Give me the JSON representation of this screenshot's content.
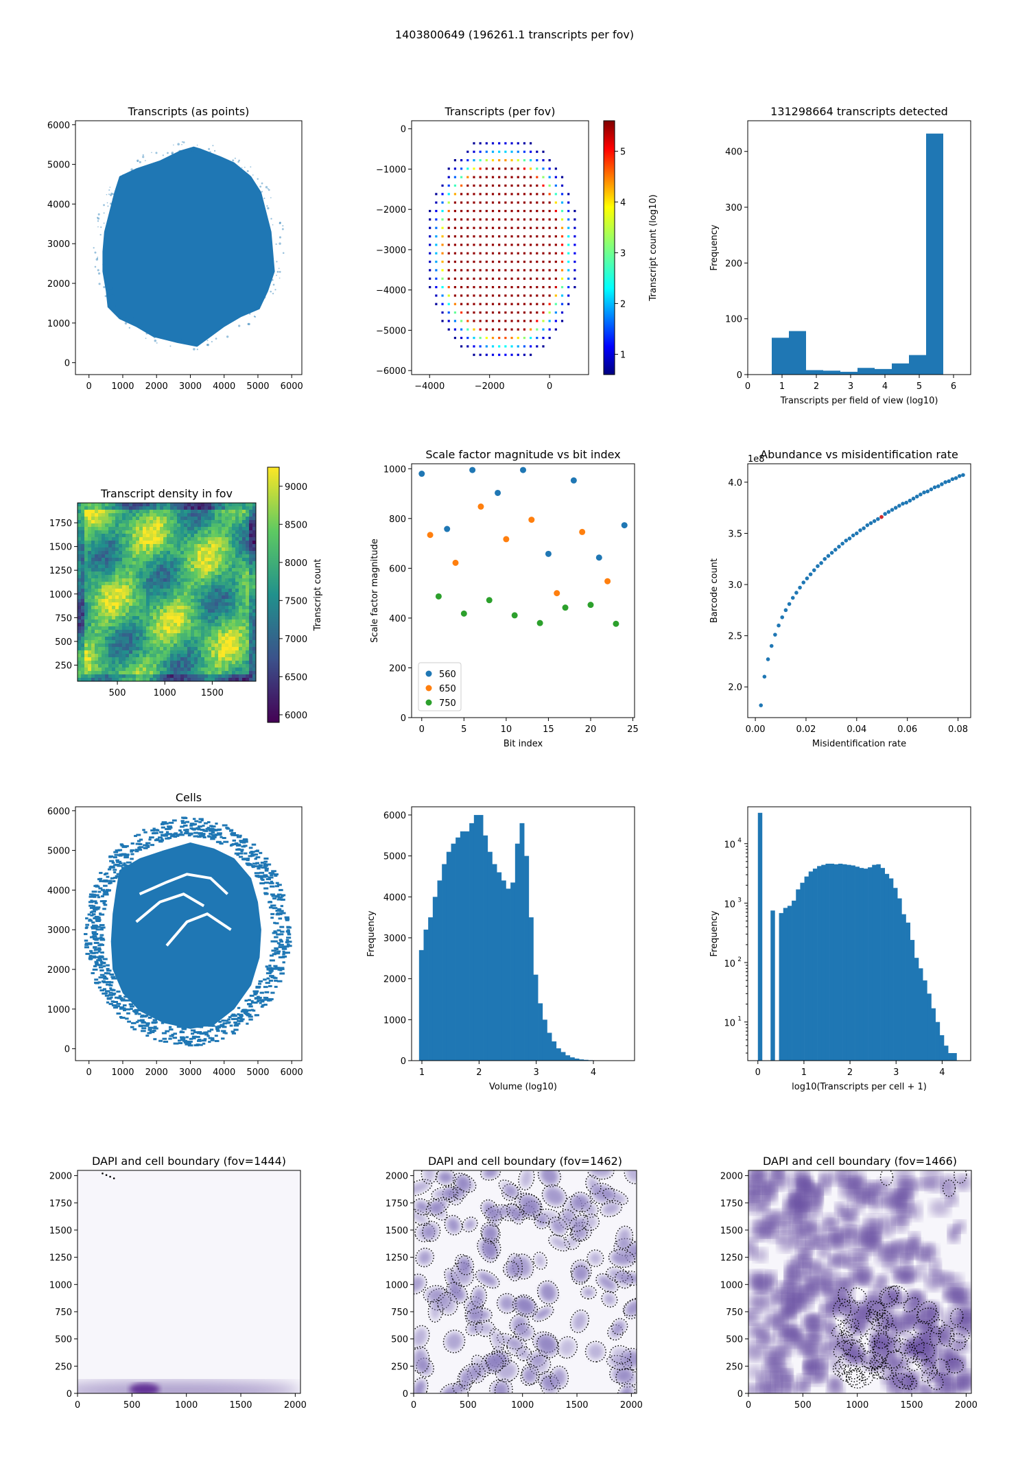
{
  "suptitle": "1403800649 (196261.1 transcripts per fov)",
  "colors": {
    "blue": "#1f77b4",
    "orange": "#ff7f0e",
    "green": "#2ca02c",
    "red": "#d62728",
    "dapi_dark": "#3f007d",
    "dapi_light": "#f7f6fb"
  },
  "chart_data": [
    {
      "id": "transcripts_points",
      "type": "scatter",
      "title": "Transcripts (as points)",
      "xlim": [
        -400,
        6300
      ],
      "ylim": [
        -300,
        6100
      ],
      "xticks": [
        0,
        1000,
        2000,
        3000,
        4000,
        5000,
        6000
      ],
      "yticks": [
        0,
        1000,
        2000,
        3000,
        4000,
        5000,
        6000
      ],
      "shape": "dense tissue outline",
      "outline": [
        [
          900,
          4700
        ],
        [
          1400,
          4900
        ],
        [
          2100,
          5100
        ],
        [
          2700,
          5350
        ],
        [
          3100,
          5450
        ],
        [
          3300,
          5400
        ],
        [
          3900,
          5200
        ],
        [
          4300,
          5050
        ],
        [
          4800,
          4700
        ],
        [
          5100,
          4300
        ],
        [
          5250,
          3800
        ],
        [
          5400,
          3300
        ],
        [
          5450,
          2800
        ],
        [
          5500,
          2300
        ],
        [
          5300,
          1800
        ],
        [
          5050,
          1350
        ],
        [
          4500,
          1150
        ],
        [
          4000,
          900
        ],
        [
          3600,
          650
        ],
        [
          3200,
          400
        ],
        [
          2600,
          500
        ],
        [
          1900,
          650
        ],
        [
          1400,
          900
        ],
        [
          900,
          1100
        ],
        [
          550,
          1400
        ],
        [
          500,
          1800
        ],
        [
          400,
          2300
        ],
        [
          400,
          2800
        ],
        [
          450,
          3300
        ],
        [
          600,
          3800
        ],
        [
          750,
          4300
        ]
      ]
    },
    {
      "id": "transcripts_per_fov",
      "type": "scatter",
      "title": "Transcripts (per fov)",
      "xlim": [
        -4600,
        1300
      ],
      "ylim": [
        -6100,
        200
      ],
      "xticks": [
        -4000,
        -2000,
        0
      ],
      "yticks": [
        0,
        -1000,
        -2000,
        -3000,
        -4000,
        -5000,
        -6000
      ],
      "colorbar": {
        "label": "Transcript count (log10)",
        "ticks": [
          1,
          2,
          3,
          4,
          5
        ],
        "range": [
          0.6,
          5.6
        ]
      },
      "grid": {
        "x_start": -4200,
        "x_step": 210,
        "x_count": 26,
        "y_start": -150,
        "y_step": -210,
        "y_count": 27,
        "center_x": -1550,
        "center_y": -3000,
        "radius_x": 2600,
        "radius_y": 2850
      }
    },
    {
      "id": "transcripts_hist",
      "type": "bar",
      "title": "131298664 transcripts detected",
      "xlabel": "Transcripts per field of view (log10)",
      "ylabel": "Frequency",
      "xlim": [
        0,
        6.5
      ],
      "ylim": [
        0,
        455
      ],
      "xticks": [
        0,
        1,
        2,
        3,
        4,
        5,
        6
      ],
      "yticks": [
        0,
        100,
        200,
        300,
        400
      ],
      "bin_edges": [
        0.7,
        1.2,
        1.7,
        2.2,
        2.7,
        3.2,
        3.7,
        4.2,
        4.7,
        5.2,
        5.7
      ],
      "values": [
        66,
        78,
        8,
        7,
        5,
        12,
        10,
        20,
        35,
        432
      ]
    },
    {
      "id": "density_fov",
      "type": "heatmap",
      "title": "Transcript density in fov",
      "xlim": [
        80,
        1960
      ],
      "ylim": [
        80,
        1960
      ],
      "xticks": [
        500,
        1000,
        1500
      ],
      "yticks": [
        250,
        500,
        750,
        1000,
        1250,
        1500,
        1750
      ],
      "colorbar": {
        "label": "Transcript count",
        "ticks": [
          6000,
          6500,
          7000,
          7500,
          8000,
          8500,
          9000
        ],
        "range": [
          5900,
          9250
        ]
      }
    },
    {
      "id": "scale_factor",
      "type": "scatter",
      "title": "Scale factor magnitude vs bit index",
      "xlabel": "Bit index",
      "ylabel": "Scale factor magnitude",
      "xlim": [
        -1.2,
        25.2
      ],
      "ylim": [
        0,
        1020
      ],
      "xticks": [
        0,
        5,
        10,
        15,
        20,
        25
      ],
      "yticks": [
        0,
        200,
        400,
        600,
        800,
        1000
      ],
      "legend": "lower left",
      "series": [
        {
          "name": "560",
          "x": [
            0,
            3,
            6,
            9,
            12,
            15,
            18,
            21,
            24
          ],
          "y": [
            980,
            758,
            995,
            903,
            995,
            658,
            953,
            643,
            773
          ]
        },
        {
          "name": "650",
          "x": [
            1,
            4,
            7,
            10,
            13,
            16,
            19,
            22
          ],
          "y": [
            734,
            622,
            848,
            717,
            795,
            500,
            746,
            548
          ]
        },
        {
          "name": "750",
          "x": [
            2,
            5,
            8,
            11,
            14,
            17,
            20,
            23
          ],
          "y": [
            487,
            418,
            472,
            411,
            380,
            442,
            453,
            377
          ]
        }
      ]
    },
    {
      "id": "abundance",
      "type": "scatter",
      "title": "Abundance vs misidentification rate",
      "xlabel": "Misidentification rate",
      "ylabel": "Barcode count",
      "offset_text": "1e8",
      "xlim": [
        -0.003,
        0.085
      ],
      "ylim": [
        1.7,
        4.18
      ],
      "xticks": [
        0.0,
        0.02,
        0.04,
        0.06,
        0.08
      ],
      "yticks": [
        2.0,
        2.5,
        3.0,
        3.5,
        4.0
      ],
      "x": [
        0.0022,
        0.0036,
        0.005,
        0.0064,
        0.0078,
        0.0092,
        0.0106,
        0.012,
        0.0134,
        0.0148,
        0.0162,
        0.0176,
        0.019,
        0.0204,
        0.0218,
        0.0232,
        0.0246,
        0.026,
        0.0274,
        0.0288,
        0.0302,
        0.0316,
        0.033,
        0.0344,
        0.0358,
        0.0372,
        0.0386,
        0.04,
        0.0414,
        0.0428,
        0.0442,
        0.0456,
        0.047,
        0.0484,
        0.0498,
        0.0512,
        0.0526,
        0.054,
        0.0554,
        0.0568,
        0.0582,
        0.0596,
        0.061,
        0.0624,
        0.0638,
        0.0652,
        0.0666,
        0.068,
        0.0694,
        0.0708,
        0.0722,
        0.0736,
        0.075,
        0.0764,
        0.0778,
        0.0792,
        0.0806,
        0.082
      ],
      "y": [
        1.82,
        2.1,
        2.27,
        2.4,
        2.51,
        2.6,
        2.68,
        2.75,
        2.81,
        2.87,
        2.92,
        2.97,
        3.02,
        3.06,
        3.1,
        3.14,
        3.18,
        3.21,
        3.25,
        3.28,
        3.31,
        3.34,
        3.37,
        3.4,
        3.43,
        3.45,
        3.48,
        3.5,
        3.53,
        3.55,
        3.58,
        3.6,
        3.62,
        3.64,
        3.66,
        3.69,
        3.71,
        3.73,
        3.75,
        3.77,
        3.79,
        3.8,
        3.82,
        3.84,
        3.86,
        3.88,
        3.9,
        3.91,
        3.93,
        3.95,
        3.96,
        3.98,
        4.0,
        4.01,
        4.03,
        4.04,
        4.06,
        4.07
      ],
      "highlight": {
        "x": 0.0498,
        "y": 3.66
      }
    },
    {
      "id": "cells",
      "type": "scatter",
      "title": "Cells",
      "xlim": [
        -400,
        6300
      ],
      "ylim": [
        -300,
        6100
      ],
      "xticks": [
        0,
        1000,
        2000,
        3000,
        4000,
        5000,
        6000
      ],
      "yticks": [
        0,
        1000,
        2000,
        3000,
        4000,
        5000,
        6000
      ],
      "shape": "dense tissue with surrounding ring of grid cells",
      "ring": {
        "center": [
          2900,
          2950
        ],
        "radius_x": 3000,
        "radius_y": 2850
      }
    },
    {
      "id": "volume_hist",
      "type": "bar",
      "title": "",
      "xlabel": "Volume (log10)",
      "ylabel": "Frequency",
      "xlim": [
        0.82,
        4.72
      ],
      "ylim": [
        0,
        6200
      ],
      "xticks": [
        1,
        2,
        3,
        4
      ],
      "yticks": [
        0,
        1000,
        2000,
        3000,
        4000,
        5000,
        6000
      ],
      "bin_start": 0.95,
      "bin_width": 0.08,
      "values": [
        2700,
        3200,
        3500,
        4000,
        4400,
        4800,
        5100,
        5300,
        5450,
        5600,
        5600,
        5800,
        6000,
        6000,
        5500,
        5100,
        4800,
        4600,
        4400,
        4200,
        4350,
        5300,
        5800,
        5000,
        3500,
        2100,
        1400,
        1000,
        680,
        470,
        300,
        210,
        130,
        80,
        50,
        30,
        20,
        12,
        8,
        5,
        3
      ]
    },
    {
      "id": "transcripts_per_cell",
      "type": "bar",
      "title": "",
      "xlabel": "log10(Transcripts per cell + 1)",
      "ylabel": "Frequency",
      "log_y": true,
      "xlim": [
        -0.22,
        4.62
      ],
      "ylim_log": [
        0.35,
        4.62
      ],
      "xticks": [
        0,
        1,
        2,
        3,
        4
      ],
      "ytick_labels": [
        "10",
        "10",
        "10",
        "10"
      ],
      "ytick_exponents": [
        "1",
        "2",
        "3",
        "4"
      ],
      "bin_start": 0.0,
      "bin_width": 0.0918,
      "values": [
        33000,
        0,
        0,
        750,
        0,
        680,
        830,
        900,
        1100,
        1700,
        2200,
        2800,
        3400,
        3800,
        4200,
        4400,
        4600,
        4600,
        4500,
        4600,
        4500,
        4400,
        4300,
        4100,
        3900,
        3800,
        4000,
        4400,
        4500,
        3900,
        3100,
        2600,
        1800,
        1200,
        650,
        470,
        240,
        120,
        80,
        50,
        30,
        17,
        10,
        6,
        4,
        3,
        3,
        2
      ]
    },
    {
      "id": "dapi_1444",
      "type": "heatmap",
      "title": "DAPI and cell boundary (fov=1444)",
      "xlim": [
        0,
        2048
      ],
      "ylim": [
        0,
        2048
      ],
      "xticks": [
        0,
        500,
        1000,
        1500,
        2000
      ],
      "yticks": [
        0,
        250,
        500,
        750,
        1000,
        1250,
        1500,
        1750,
        2000
      ]
    },
    {
      "id": "dapi_1462",
      "type": "heatmap",
      "title": "DAPI and cell boundary (fov=1462)",
      "xlim": [
        0,
        2048
      ],
      "ylim": [
        0,
        2048
      ],
      "xticks": [
        0,
        500,
        1000,
        1500,
        2000
      ],
      "yticks": [
        0,
        250,
        500,
        750,
        1000,
        1250,
        1500,
        1750,
        2000
      ]
    },
    {
      "id": "dapi_1466",
      "type": "heatmap",
      "title": "DAPI and cell boundary (fov=1466)",
      "xlim": [
        0,
        2048
      ],
      "ylim": [
        0,
        2048
      ],
      "xticks": [
        0,
        500,
        1000,
        1500,
        2000
      ],
      "yticks": [
        0,
        250,
        500,
        750,
        1000,
        1250,
        1500,
        1750,
        2000
      ]
    }
  ]
}
